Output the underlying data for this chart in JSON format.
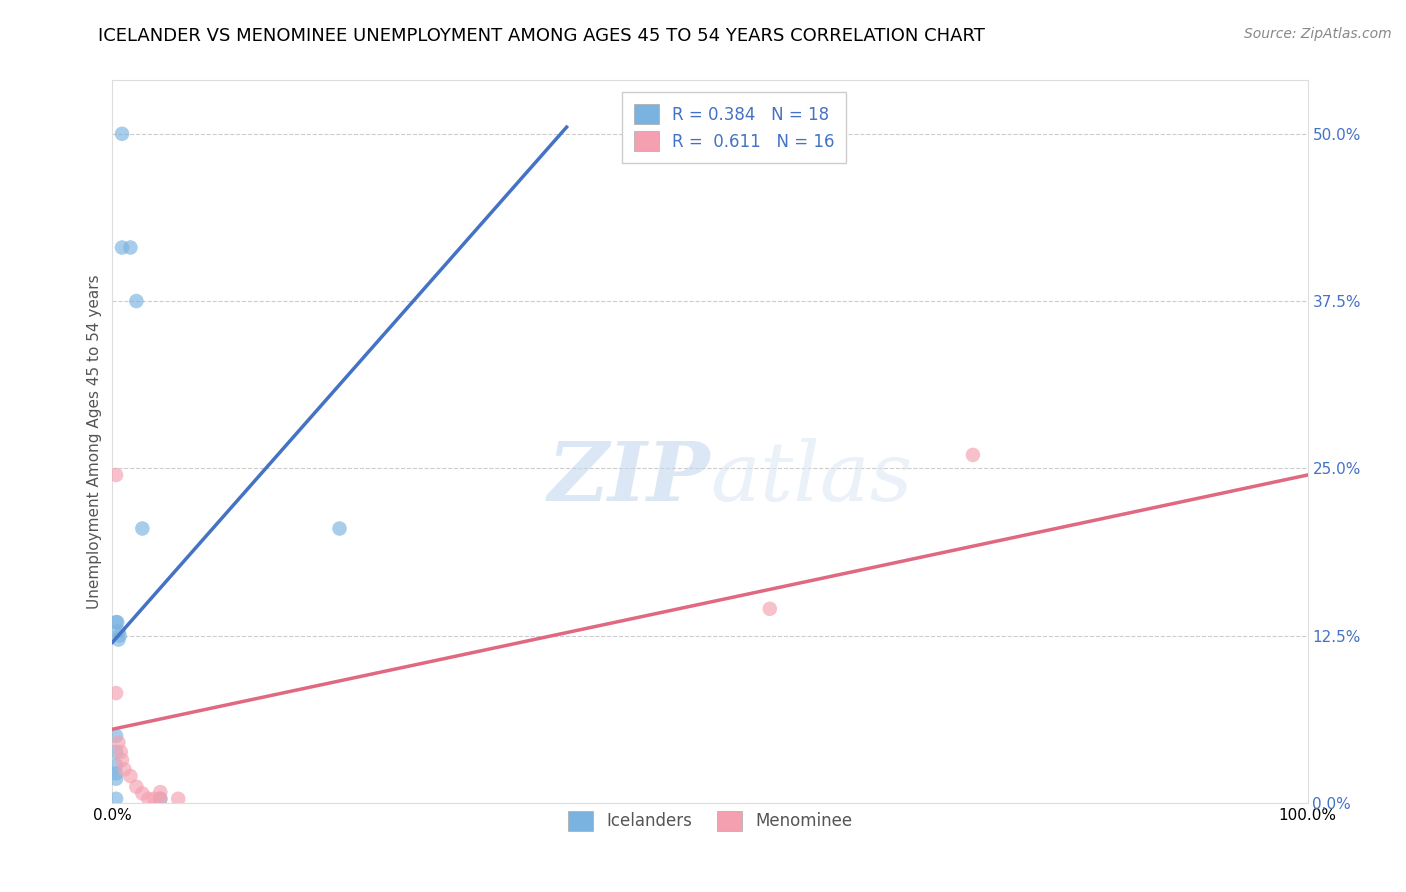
{
  "title": "ICELANDER VS MENOMINEE UNEMPLOYMENT AMONG AGES 45 TO 54 YEARS CORRELATION CHART",
  "source": "Source: ZipAtlas.com",
  "ylabel": "Unemployment Among Ages 45 to 54 years",
  "xlim": [
    0.0,
    1.0
  ],
  "ylim": [
    0.0,
    0.54
  ],
  "yticks": [
    0.0,
    0.125,
    0.25,
    0.375,
    0.5
  ],
  "ytick_labels": [
    "0.0%",
    "12.5%",
    "25.0%",
    "37.5%",
    "50.0%"
  ],
  "xticks": [
    0.0,
    0.1,
    0.2,
    0.3,
    0.4,
    0.5,
    0.6,
    0.7,
    0.8,
    0.9,
    1.0
  ],
  "icelanders_x": [
    0.008,
    0.008,
    0.015,
    0.02,
    0.003,
    0.004,
    0.005,
    0.006,
    0.005,
    0.003,
    0.003,
    0.003,
    0.003,
    0.003,
    0.025,
    0.04,
    0.003,
    0.19
  ],
  "icelanders_y": [
    0.5,
    0.415,
    0.415,
    0.375,
    0.135,
    0.135,
    0.128,
    0.125,
    0.122,
    0.05,
    0.038,
    0.028,
    0.022,
    0.018,
    0.205,
    0.003,
    0.003,
    0.205
  ],
  "menominee_x": [
    0.003,
    0.003,
    0.005,
    0.007,
    0.008,
    0.01,
    0.015,
    0.02,
    0.025,
    0.03,
    0.035,
    0.04,
    0.04,
    0.055,
    0.72,
    0.55
  ],
  "menominee_y": [
    0.245,
    0.082,
    0.045,
    0.038,
    0.032,
    0.025,
    0.02,
    0.012,
    0.007,
    0.003,
    0.003,
    0.003,
    0.008,
    0.003,
    0.26,
    0.145
  ],
  "icelanders_color": "#7ab3e0",
  "menominee_color": "#f4a0b0",
  "icelanders_line_color": "#4472c4",
  "menominee_line_color": "#e06880",
  "R_icelanders": 0.384,
  "N_icelanders": 18,
  "R_menominee": 0.611,
  "N_menominee": 16,
  "icelanders_trendline_x": [
    0.0,
    0.38
  ],
  "icelanders_trendline_y": [
    0.12,
    0.505
  ],
  "menominee_trendline_x": [
    0.0,
    1.0
  ],
  "menominee_trendline_y": [
    0.055,
    0.245
  ],
  "marker_size": 110,
  "title_fontsize": 13,
  "axis_label_fontsize": 11,
  "tick_fontsize": 11,
  "legend_fontsize": 12,
  "source_fontsize": 10
}
